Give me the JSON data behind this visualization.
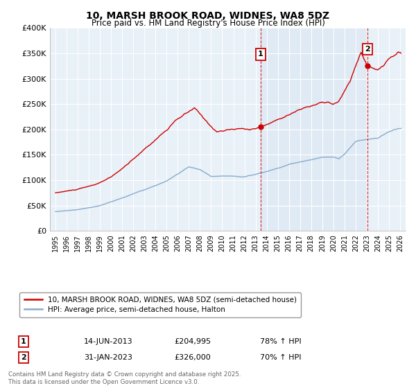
{
  "title": "10, MARSH BROOK ROAD, WIDNES, WA8 5DZ",
  "subtitle": "Price paid vs. HM Land Registry's House Price Index (HPI)",
  "legend_line1": "10, MARSH BROOK ROAD, WIDNES, WA8 5DZ (semi-detached house)",
  "legend_line2": "HPI: Average price, semi-detached house, Halton",
  "marker1_label": "1",
  "marker1_date": "14-JUN-2013",
  "marker1_price": "£204,995",
  "marker1_hpi": "78% ↑ HPI",
  "marker1_x": 2013.45,
  "marker1_y": 204995,
  "marker2_label": "2",
  "marker2_date": "31-JAN-2023",
  "marker2_price": "£326,000",
  "marker2_hpi": "70% ↑ HPI",
  "marker2_x": 2023.08,
  "marker2_y": 326000,
  "footnote": "Contains HM Land Registry data © Crown copyright and database right 2025.\nThis data is licensed under the Open Government Licence v3.0.",
  "ylim": [
    0,
    400000
  ],
  "yticks": [
    0,
    50000,
    100000,
    150000,
    200000,
    250000,
    300000,
    350000,
    400000
  ],
  "ytick_labels": [
    "£0",
    "£50K",
    "£100K",
    "£150K",
    "£200K",
    "£250K",
    "£300K",
    "£350K",
    "£400K"
  ],
  "xlim_min": 1994.5,
  "xlim_max": 2026.5,
  "red_color": "#cc0000",
  "blue_color": "#88aacc",
  "bg_color": "#e8f0f8",
  "shade_color": "#dce8f5",
  "grid_color": "#ffffff",
  "fig_bg": "#ffffff",
  "red_keypoints_x": [
    1995.0,
    1997.0,
    1998.5,
    2000.0,
    2001.5,
    2003.0,
    2004.5,
    2006.0,
    2007.5,
    2008.5,
    2009.5,
    2010.5,
    2011.5,
    2012.5,
    2013.45,
    2014.5,
    2015.5,
    2016.5,
    2017.5,
    2018.5,
    2019.5,
    2020.0,
    2020.5,
    2021.5,
    2022.5,
    2023.08,
    2024.0,
    2025.0,
    2025.8
  ],
  "red_keypoints_y": [
    75000,
    82000,
    90000,
    105000,
    130000,
    160000,
    190000,
    220000,
    240000,
    215000,
    195000,
    198000,
    200000,
    200000,
    204995,
    215000,
    228000,
    238000,
    248000,
    255000,
    258000,
    252000,
    258000,
    295000,
    355000,
    326000,
    315000,
    338000,
    350000
  ],
  "blue_keypoints_x": [
    1995.0,
    1997.0,
    1999.0,
    2001.0,
    2003.0,
    2005.0,
    2007.0,
    2008.0,
    2009.0,
    2010.0,
    2011.0,
    2012.0,
    2013.0,
    2014.0,
    2015.0,
    2016.0,
    2017.0,
    2018.0,
    2019.0,
    2020.0,
    2020.5,
    2021.0,
    2022.0,
    2023.0,
    2024.0,
    2025.0,
    2025.8
  ],
  "blue_keypoints_y": [
    38000,
    42000,
    50000,
    65000,
    82000,
    100000,
    128000,
    122000,
    108000,
    108000,
    108000,
    107000,
    112000,
    118000,
    125000,
    132000,
    138000,
    142000,
    148000,
    148000,
    143000,
    152000,
    175000,
    180000,
    182000,
    195000,
    202000
  ]
}
